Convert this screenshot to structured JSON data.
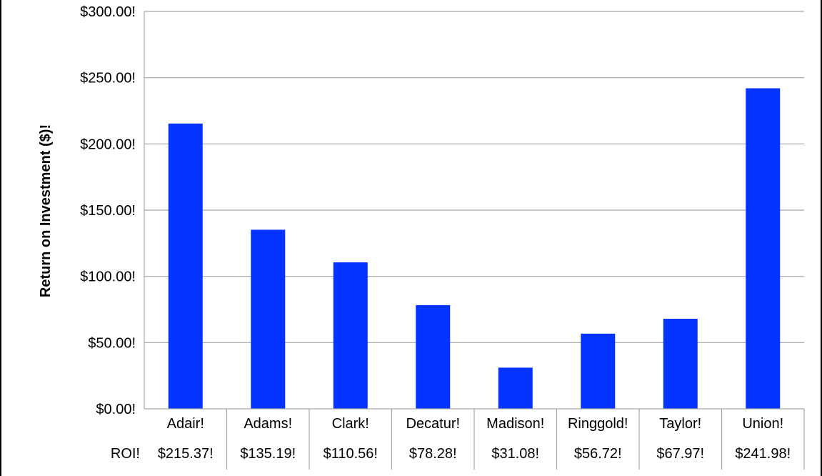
{
  "chart_data": {
    "type": "bar",
    "categories": [
      "Adair!",
      "Adams!",
      "Clark!",
      "Decatur!",
      "Madison!",
      "Ringgold!",
      "Taylor!",
      "Union!"
    ],
    "values": [
      215.37,
      135.19,
      110.56,
      78.28,
      31.08,
      56.72,
      67.97,
      241.98
    ],
    "ylabel": "Return on Investment ($)!",
    "xlabel": "",
    "ylim": [
      0,
      300
    ],
    "yticks": [
      0,
      50,
      100,
      150,
      200,
      250,
      300
    ],
    "ytick_labels": [
      "$0.00!",
      "$50.00!",
      "$100.00!",
      "$150.00!",
      "$200.00!",
      "$250.00!",
      "$300.00!"
    ],
    "grid": true,
    "bar_color": "#0433FF",
    "data_table": {
      "row_label": "ROI!",
      "cells": [
        "$215.37!",
        "$135.19!",
        "$110.56!",
        "$78.28!",
        "$31.08!",
        "$56.72!",
        "$67.97!",
        "$241.98!"
      ]
    }
  }
}
